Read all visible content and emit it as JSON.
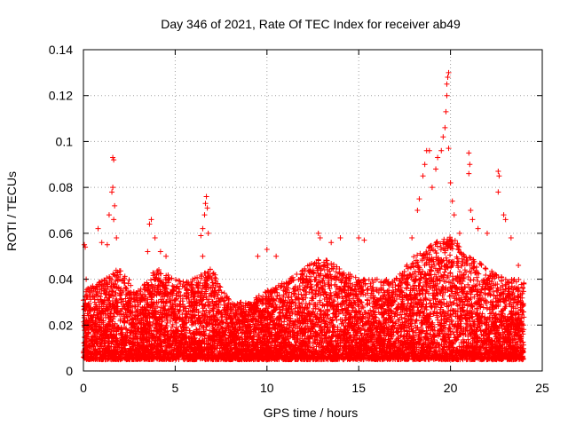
{
  "chart_data": {
    "type": "scatter",
    "title": "Day 346 of 2021, Rate Of TEC Index for receiver ab49",
    "xlabel": "GPS time / hours",
    "ylabel": "ROTI / TECUs",
    "xlim": [
      0,
      25
    ],
    "ylim": [
      0,
      0.14
    ],
    "x_ticks": [
      0,
      5,
      10,
      15,
      20,
      25
    ],
    "x_tick_labels": [
      "0",
      "5",
      "10",
      "15",
      "20",
      "25"
    ],
    "y_ticks": [
      0,
      0.02,
      0.04,
      0.06,
      0.08,
      0.1,
      0.12,
      0.14
    ],
    "y_tick_labels": [
      "0",
      "0.02",
      "0.04",
      "0.06",
      "0.08",
      "0.1",
      "0.12",
      "0.14"
    ],
    "grid": true,
    "marker": "+",
    "marker_color": "#ff0000",
    "data_x_range_hours": [
      0,
      24
    ],
    "baseline_envelope": {
      "hours": [
        0,
        1,
        2,
        3,
        4,
        5,
        6,
        7,
        8,
        9,
        10,
        11,
        12,
        13,
        14,
        15,
        16,
        17,
        18,
        19,
        20,
        21,
        22,
        23,
        24
      ],
      "typical_max": [
        0.035,
        0.04,
        0.045,
        0.035,
        0.045,
        0.04,
        0.04,
        0.045,
        0.03,
        0.03,
        0.035,
        0.04,
        0.045,
        0.05,
        0.045,
        0.04,
        0.04,
        0.04,
        0.05,
        0.055,
        0.06,
        0.05,
        0.045,
        0.04,
        0.04
      ],
      "typical_min": [
        0.005,
        0.005,
        0.005,
        0.005,
        0.005,
        0.005,
        0.005,
        0.005,
        0.005,
        0.005,
        0.005,
        0.005,
        0.005,
        0.005,
        0.005,
        0.005,
        0.005,
        0.005,
        0.005,
        0.005,
        0.005,
        0.005,
        0.005,
        0.005,
        0.005
      ]
    },
    "notable_points": [
      {
        "x": 0.05,
        "y": 0.055
      },
      {
        "x": 0.1,
        "y": 0.054
      },
      {
        "x": 0.15,
        "y": 0.04
      },
      {
        "x": 0.8,
        "y": 0.062
      },
      {
        "x": 1.0,
        "y": 0.056
      },
      {
        "x": 1.3,
        "y": 0.055
      },
      {
        "x": 1.4,
        "y": 0.068
      },
      {
        "x": 1.55,
        "y": 0.078
      },
      {
        "x": 1.6,
        "y": 0.08
      },
      {
        "x": 1.6,
        "y": 0.093
      },
      {
        "x": 1.65,
        "y": 0.092
      },
      {
        "x": 1.7,
        "y": 0.072
      },
      {
        "x": 1.65,
        "y": 0.066
      },
      {
        "x": 1.8,
        "y": 0.058
      },
      {
        "x": 3.5,
        "y": 0.052
      },
      {
        "x": 3.6,
        "y": 0.064
      },
      {
        "x": 3.7,
        "y": 0.066
      },
      {
        "x": 3.9,
        "y": 0.058
      },
      {
        "x": 4.2,
        "y": 0.052
      },
      {
        "x": 4.5,
        "y": 0.05
      },
      {
        "x": 6.4,
        "y": 0.059
      },
      {
        "x": 6.5,
        "y": 0.062
      },
      {
        "x": 6.6,
        "y": 0.068
      },
      {
        "x": 6.65,
        "y": 0.073
      },
      {
        "x": 6.7,
        "y": 0.076
      },
      {
        "x": 6.75,
        "y": 0.071
      },
      {
        "x": 6.8,
        "y": 0.06
      },
      {
        "x": 6.5,
        "y": 0.05
      },
      {
        "x": 9.5,
        "y": 0.05
      },
      {
        "x": 10.0,
        "y": 0.053
      },
      {
        "x": 10.5,
        "y": 0.05
      },
      {
        "x": 12.8,
        "y": 0.06
      },
      {
        "x": 12.9,
        "y": 0.058
      },
      {
        "x": 13.5,
        "y": 0.056
      },
      {
        "x": 14.0,
        "y": 0.058
      },
      {
        "x": 15.0,
        "y": 0.058
      },
      {
        "x": 15.3,
        "y": 0.057
      },
      {
        "x": 17.9,
        "y": 0.058
      },
      {
        "x": 18.2,
        "y": 0.07
      },
      {
        "x": 18.3,
        "y": 0.075
      },
      {
        "x": 18.5,
        "y": 0.085
      },
      {
        "x": 18.6,
        "y": 0.09
      },
      {
        "x": 18.7,
        "y": 0.096
      },
      {
        "x": 18.85,
        "y": 0.096
      },
      {
        "x": 19.0,
        "y": 0.08
      },
      {
        "x": 19.2,
        "y": 0.088
      },
      {
        "x": 19.3,
        "y": 0.093
      },
      {
        "x": 19.5,
        "y": 0.096
      },
      {
        "x": 19.6,
        "y": 0.102
      },
      {
        "x": 19.7,
        "y": 0.106
      },
      {
        "x": 19.75,
        "y": 0.113
      },
      {
        "x": 19.8,
        "y": 0.12
      },
      {
        "x": 19.8,
        "y": 0.125
      },
      {
        "x": 19.85,
        "y": 0.128
      },
      {
        "x": 19.9,
        "y": 0.13
      },
      {
        "x": 19.9,
        "y": 0.097
      },
      {
        "x": 20.0,
        "y": 0.082
      },
      {
        "x": 20.1,
        "y": 0.074
      },
      {
        "x": 20.2,
        "y": 0.068
      },
      {
        "x": 20.5,
        "y": 0.06
      },
      {
        "x": 21.0,
        "y": 0.095
      },
      {
        "x": 21.05,
        "y": 0.09
      },
      {
        "x": 21.0,
        "y": 0.086
      },
      {
        "x": 21.1,
        "y": 0.07
      },
      {
        "x": 21.2,
        "y": 0.066
      },
      {
        "x": 21.5,
        "y": 0.062
      },
      {
        "x": 22.0,
        "y": 0.06
      },
      {
        "x": 22.6,
        "y": 0.087
      },
      {
        "x": 22.65,
        "y": 0.085
      },
      {
        "x": 22.6,
        "y": 0.078
      },
      {
        "x": 22.9,
        "y": 0.068
      },
      {
        "x": 23.0,
        "y": 0.066
      },
      {
        "x": 23.3,
        "y": 0.058
      },
      {
        "x": 23.7,
        "y": 0.046
      }
    ]
  }
}
